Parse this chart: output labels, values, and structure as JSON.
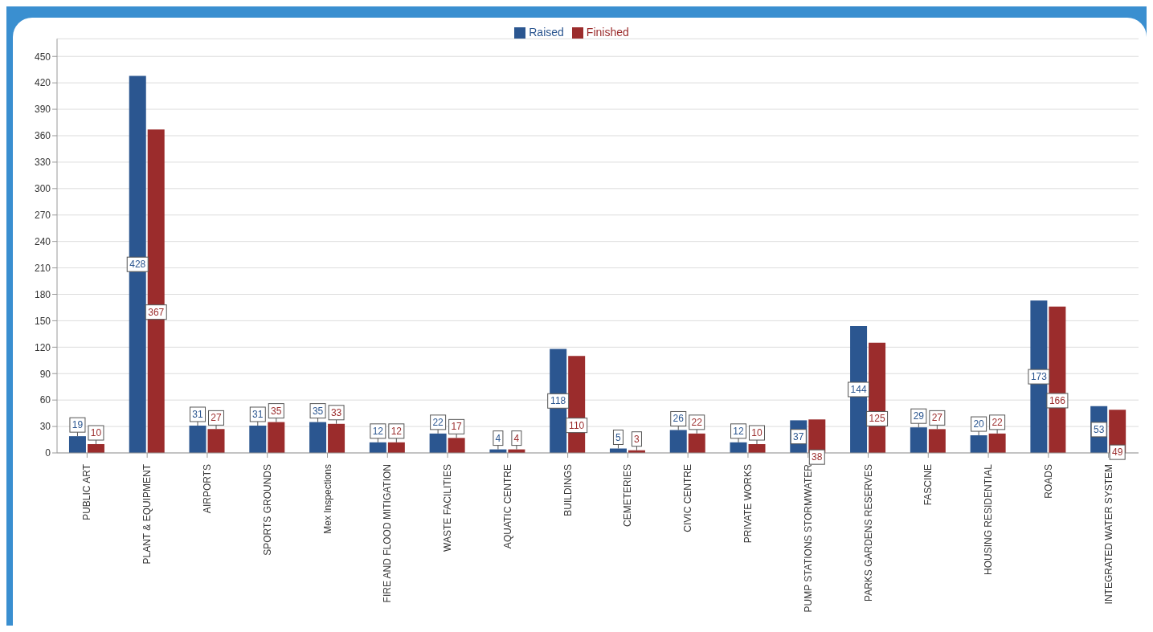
{
  "chart_data": {
    "type": "bar",
    "categories": [
      "PUBLIC ART",
      "PLANT & EQUIPMENT",
      "AIRPORTS",
      "SPORTS GROUNDS",
      "Mex Inspections",
      "FIRE AND FLOOD MITIGATION",
      "WASTE FACILITIES",
      "AQUATIC CENTRE",
      "BUILDINGS",
      "CEMETERIES",
      "CIVIC CENTRE",
      "PRIVATE WORKS",
      "PUMP STATIONS STORMWATER",
      "PARKS GARDENS RESERVES",
      "FASCINE",
      "HOUSING RESIDENTIAL",
      "ROADS",
      "INTEGRATED WATER SYSTEM"
    ],
    "series": [
      {
        "name": "Raised",
        "color": "#2b5690",
        "values": [
          19,
          428,
          31,
          31,
          35,
          12,
          22,
          4,
          118,
          5,
          26,
          12,
          37,
          144,
          29,
          20,
          173,
          53
        ]
      },
      {
        "name": "Finished",
        "color": "#9b2c2c",
        "values": [
          10,
          367,
          27,
          35,
          33,
          12,
          17,
          4,
          110,
          3,
          22,
          10,
          38,
          125,
          27,
          22,
          166,
          49
        ]
      }
    ],
    "ylim": [
      0,
      470
    ],
    "yticks": [
      0,
      30,
      60,
      90,
      120,
      150,
      180,
      210,
      240,
      270,
      300,
      330,
      360,
      390,
      420,
      450
    ],
    "grid": "y",
    "legend": "top",
    "data_labels": true
  }
}
